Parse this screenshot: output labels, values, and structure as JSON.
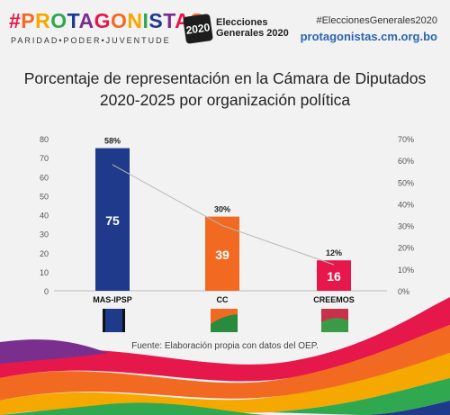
{
  "header": {
    "brand_title": "#PROTAGONISTAS",
    "brand_subtitle": "PARIDAD•PODER•JUVENTUDE",
    "event_logo_text": "2020",
    "event_line1": "Elecciones",
    "event_line2": "Generales 2020",
    "hashtag": "#EleccionesGenerales2020",
    "url": "protagonistas.cm.org.bo"
  },
  "chart_data": {
    "type": "bar",
    "title_line1": "Porcentaje de representación en la Cámara de Diputados",
    "title_line2": "2020-2025 por organización política",
    "categories": [
      "MAS-IPSP",
      "CC",
      "CREEMOS"
    ],
    "values": [
      75,
      39,
      16
    ],
    "percentages": [
      "58%",
      "30%",
      "12%"
    ],
    "percent_values": [
      58,
      30,
      12
    ],
    "bar_colors": [
      "#1f3a8a",
      "#f26a22",
      "#e5174b"
    ],
    "ylim_left": [
      0,
      80
    ],
    "left_ticks": [
      "0",
      "10",
      "20",
      "30",
      "40",
      "50",
      "60",
      "70",
      "80"
    ],
    "ylim_right": [
      0,
      70
    ],
    "right_ticks": [
      "0%",
      "10%",
      "20%",
      "30%",
      "40%",
      "50%",
      "60%",
      "70%"
    ],
    "grid": false
  },
  "source_note": "Fuente: Elaboración propia con datos del OEP."
}
